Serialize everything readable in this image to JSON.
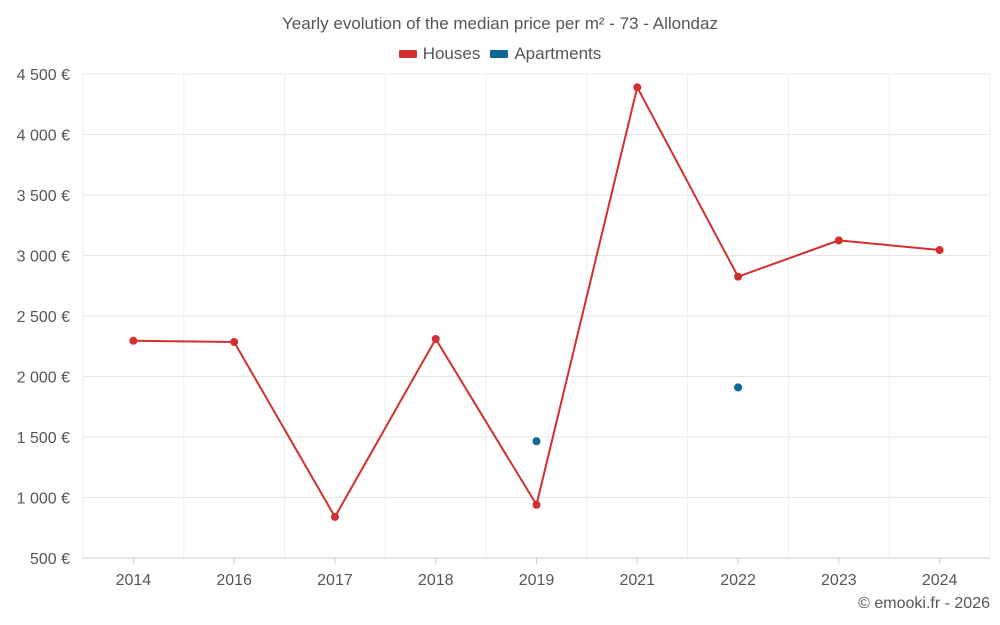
{
  "chart_data": {
    "type": "line",
    "title": "Yearly evolution of the median price per m² - 73 - Allondaz",
    "categories": [
      "2014",
      "2016",
      "2017",
      "2018",
      "2019",
      "2021",
      "2022",
      "2023",
      "2024"
    ],
    "series": [
      {
        "name": "Houses",
        "color": "#d32f2f",
        "values": [
          2295,
          2285,
          840,
          2310,
          940,
          4390,
          2825,
          3125,
          3045
        ]
      },
      {
        "name": "Apartments",
        "color": "#0d6797",
        "values": [
          null,
          null,
          null,
          null,
          1465,
          null,
          1910,
          null,
          null
        ]
      }
    ],
    "y_ticks": [
      "4 500 €",
      "4 000 €",
      "3 500 €",
      "3 000 €",
      "2 500 €",
      "2 000 €",
      "1 500 €",
      "1 000 €",
      "500 €"
    ],
    "y_tick_values": [
      4500,
      4000,
      3500,
      3000,
      2500,
      2000,
      1500,
      1000,
      500
    ],
    "ylim": [
      500,
      4500
    ],
    "xlabel": "",
    "ylabel": "",
    "grid": true,
    "legend_position": "top-center"
  },
  "credit": "© emooki.fr - 2026"
}
